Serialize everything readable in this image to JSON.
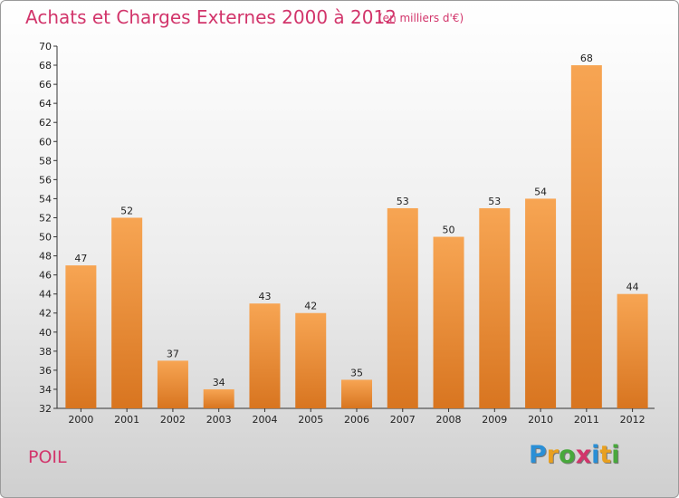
{
  "header": {
    "title": "Achats et Charges Externes 2000 à 2012",
    "subtitle": "(en milliers d'€)"
  },
  "footer": {
    "place": "POIL",
    "logo": "Proxiti",
    "logo_letters": [
      {
        "ch": "P",
        "color": "#2a8fd6"
      },
      {
        "ch": "r",
        "color": "#e8a020"
      },
      {
        "ch": "o",
        "color": "#48a83c"
      },
      {
        "ch": "x",
        "color": "#d2356b"
      },
      {
        "ch": "i",
        "color": "#2a8fd6"
      },
      {
        "ch": "t",
        "color": "#e8a020"
      },
      {
        "ch": "i",
        "color": "#48a83c"
      }
    ]
  },
  "chart_data": {
    "type": "bar",
    "categories": [
      "2000",
      "2001",
      "2002",
      "2003",
      "2004",
      "2005",
      "2006",
      "2007",
      "2008",
      "2009",
      "2010",
      "2011",
      "2012"
    ],
    "values": [
      47,
      52,
      37,
      34,
      43,
      42,
      35,
      53,
      50,
      53,
      54,
      68,
      44
    ],
    "ylim": [
      32,
      70
    ],
    "yticks": [
      32,
      34,
      36,
      38,
      40,
      42,
      44,
      46,
      48,
      50,
      52,
      54,
      56,
      58,
      60,
      62,
      64,
      66,
      68,
      70
    ],
    "grid": false,
    "bar_color_light": "#f7a553",
    "bar_color_dark": "#d87520"
  }
}
